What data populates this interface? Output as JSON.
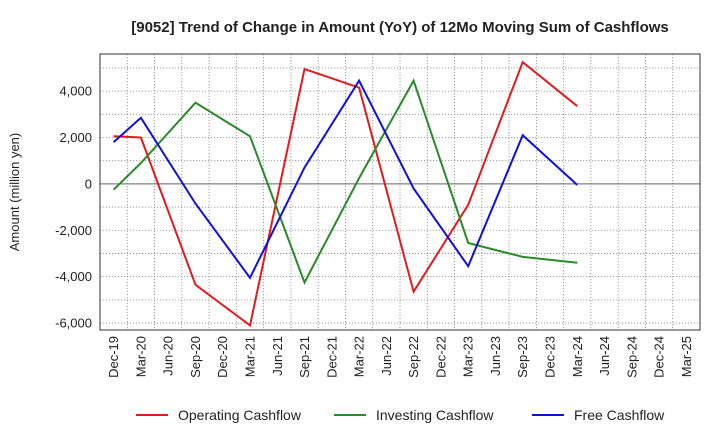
{
  "chart_data": {
    "type": "line",
    "title": "[9052]  Trend of Change in Amount (YoY) of 12Mo Moving Sum of Cashflows",
    "xlabel": "",
    "ylabel": "Amount (million yen)",
    "categories": [
      "Dec-19",
      "Mar-20",
      "Jun-20",
      "Sep-20",
      "Dec-20",
      "Mar-21",
      "Jun-21",
      "Sep-21",
      "Dec-21",
      "Mar-22",
      "Jun-22",
      "Sep-22",
      "Dec-22",
      "Mar-23",
      "Jun-23",
      "Sep-23",
      "Dec-23",
      "Mar-24",
      "Jun-24",
      "Sep-24",
      "Dec-24",
      "Mar-25"
    ],
    "ylim": [
      -6300,
      5600
    ],
    "yticks": [
      4000,
      2000,
      0,
      -2000,
      -4000,
      -6000
    ],
    "ytick_labels": [
      "4,000",
      "2,000",
      "0",
      "-2,000",
      "-4,000",
      "-6,000"
    ],
    "grid": true,
    "legend_position": "bottom",
    "series": [
      {
        "name": "Operating Cashflow",
        "color": "#e31a1c",
        "values": [
          2050,
          2000,
          null,
          -4350,
          null,
          -6100,
          null,
          4950,
          null,
          4150,
          null,
          -4650,
          null,
          -900,
          null,
          5250,
          null,
          3350,
          null,
          null,
          null,
          null
        ]
      },
      {
        "name": "Investing Cashflow",
        "color": "#2a8a2a",
        "values": [
          -250,
          900,
          null,
          3500,
          null,
          2050,
          null,
          -4250,
          null,
          250,
          null,
          4450,
          null,
          -2550,
          null,
          -3150,
          null,
          -3400,
          null,
          null,
          null,
          null
        ]
      },
      {
        "name": "Free Cashflow",
        "color": "#1010dd",
        "values": [
          1800,
          2850,
          null,
          -850,
          null,
          -4050,
          null,
          700,
          null,
          4450,
          null,
          -200,
          null,
          -3550,
          null,
          2100,
          null,
          -50,
          null,
          null,
          null,
          null
        ]
      }
    ]
  }
}
